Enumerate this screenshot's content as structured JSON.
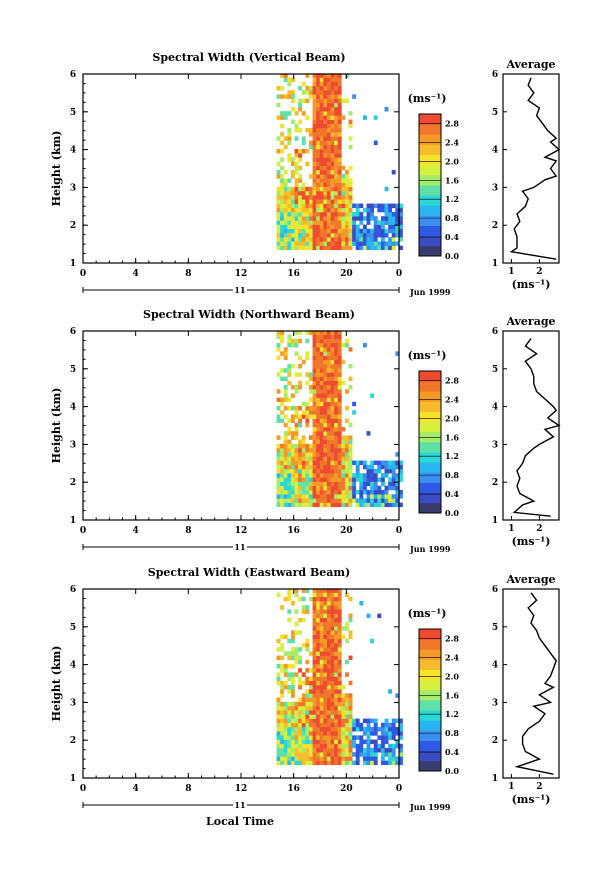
{
  "colors": {
    "background": "#ffffff",
    "axis": "#000000",
    "scale": [
      "#3b3b6e",
      "#3b4cc0",
      "#2e5ae6",
      "#3a8ff0",
      "#29b6f0",
      "#2ad6d6",
      "#5fe0a8",
      "#a4ec6a",
      "#d6f040",
      "#f5e22a",
      "#f7bc2a",
      "#f59a26",
      "#f0772a",
      "#ee4b30"
    ]
  },
  "figure": {
    "bottom_label": "Local Time",
    "date_label": "Jun 1999",
    "day_label": "11",
    "cbar_units": "(ms⁻¹)",
    "avg_title": "Average",
    "avg_xlabel": "(ms⁻¹)"
  },
  "chart_data": [
    {
      "type": "heatmap",
      "title": "Spectral Width (Vertical Beam)",
      "ylabel": "Height (km)",
      "x_ticks": [
        "0",
        "4",
        "8",
        "12",
        "16",
        "20",
        "0"
      ],
      "xlim": [
        0,
        24
      ],
      "y_ticks": [
        "1",
        "2",
        "3",
        "4",
        "5",
        "6"
      ],
      "ylim": [
        1,
        6
      ],
      "data_x_range": [
        14.7,
        24
      ],
      "data_y_range": [
        1.35,
        5.95
      ],
      "colorbar": {
        "ticks": [
          "0.0",
          "0.4",
          "0.8",
          "1.2",
          "1.6",
          "2.0",
          "2.4",
          "2.8"
        ],
        "range": [
          0,
          3.0
        ]
      },
      "average_profile": {
        "title": "Average",
        "x_ticks": [
          "1",
          "2"
        ],
        "xlim": [
          0.7,
          2.7
        ],
        "ylim": [
          1,
          6
        ],
        "height": [
          1.1,
          1.3,
          1.4,
          1.5,
          1.7,
          1.9,
          2.1,
          2.3,
          2.5,
          2.7,
          2.9,
          3.0,
          3.2,
          3.3,
          3.5,
          3.7,
          3.8,
          4.0,
          4.2,
          4.3,
          4.5,
          4.7,
          4.9,
          5.1,
          5.3,
          5.5,
          5.7,
          5.9
        ],
        "width": [
          2.6,
          1.0,
          1.2,
          1.2,
          1.2,
          1.1,
          1.3,
          1.2,
          1.5,
          1.6,
          1.4,
          1.8,
          2.2,
          2.6,
          2.4,
          2.6,
          2.2,
          2.7,
          2.4,
          2.6,
          2.3,
          2.1,
          1.9,
          2.0,
          1.6,
          1.8,
          1.6,
          1.7
        ]
      }
    },
    {
      "type": "heatmap",
      "title": "Spectral Width (Northward Beam)",
      "ylabel": "Height (km)",
      "x_ticks": [
        "0",
        "4",
        "8",
        "12",
        "16",
        "20",
        "0"
      ],
      "xlim": [
        0,
        24
      ],
      "y_ticks": [
        "1",
        "2",
        "3",
        "4",
        "5",
        "6"
      ],
      "ylim": [
        1,
        6
      ],
      "data_x_range": [
        14.7,
        24
      ],
      "data_y_range": [
        1.35,
        5.95
      ],
      "colorbar": {
        "ticks": [
          "0.0",
          "0.4",
          "0.8",
          "1.2",
          "1.6",
          "2.0",
          "2.4",
          "2.8"
        ],
        "range": [
          0,
          3.0
        ]
      },
      "average_profile": {
        "title": "Average",
        "x_ticks": [
          "1",
          "2"
        ],
        "xlim": [
          0.7,
          2.7
        ],
        "ylim": [
          1,
          6
        ],
        "height": [
          1.1,
          1.2,
          1.4,
          1.5,
          1.7,
          1.9,
          2.1,
          2.3,
          2.5,
          2.7,
          2.9,
          3.0,
          3.2,
          3.4,
          3.5,
          3.7,
          3.9,
          4.0,
          4.2,
          4.4,
          4.6,
          4.8,
          5.0,
          5.2,
          5.4,
          5.6,
          5.8
        ],
        "width": [
          2.4,
          1.1,
          1.4,
          1.8,
          1.3,
          1.2,
          1.3,
          1.2,
          1.4,
          1.5,
          1.8,
          2.0,
          2.5,
          2.2,
          2.7,
          2.3,
          2.6,
          2.5,
          2.2,
          1.9,
          1.8,
          1.8,
          1.7,
          1.5,
          1.9,
          1.5,
          1.7
        ]
      }
    },
    {
      "type": "heatmap",
      "title": "Spectral Width (Eastward Beam)",
      "ylabel": "Height (km)",
      "x_ticks": [
        "0",
        "4",
        "8",
        "12",
        "16",
        "20",
        "0"
      ],
      "xlim": [
        0,
        24
      ],
      "y_ticks": [
        "1",
        "2",
        "3",
        "4",
        "5",
        "6"
      ],
      "ylim": [
        1,
        6
      ],
      "data_x_range": [
        14.7,
        24
      ],
      "data_y_range": [
        1.35,
        5.95
      ],
      "colorbar": {
        "ticks": [
          "0.0",
          "0.4",
          "0.8",
          "1.2",
          "1.6",
          "2.0",
          "2.4",
          "2.8"
        ],
        "range": [
          0,
          3.0
        ]
      },
      "average_profile": {
        "title": "Average",
        "x_ticks": [
          "1",
          "2"
        ],
        "xlim": [
          0.7,
          2.7
        ],
        "ylim": [
          1,
          6
        ],
        "height": [
          1.1,
          1.3,
          1.4,
          1.5,
          1.7,
          1.9,
          2.1,
          2.3,
          2.5,
          2.7,
          2.9,
          3.0,
          3.2,
          3.4,
          3.5,
          3.7,
          3.9,
          4.1,
          4.3,
          4.5,
          4.7,
          4.9,
          5.1,
          5.3,
          5.5,
          5.7,
          5.9
        ],
        "width": [
          2.5,
          1.2,
          1.6,
          2.0,
          1.5,
          1.4,
          1.4,
          1.6,
          2.0,
          2.2,
          1.8,
          2.4,
          2.0,
          2.5,
          2.2,
          2.4,
          2.5,
          2.6,
          2.4,
          2.2,
          2.0,
          1.9,
          1.7,
          1.8,
          1.6,
          1.9,
          1.7
        ]
      }
    }
  ]
}
